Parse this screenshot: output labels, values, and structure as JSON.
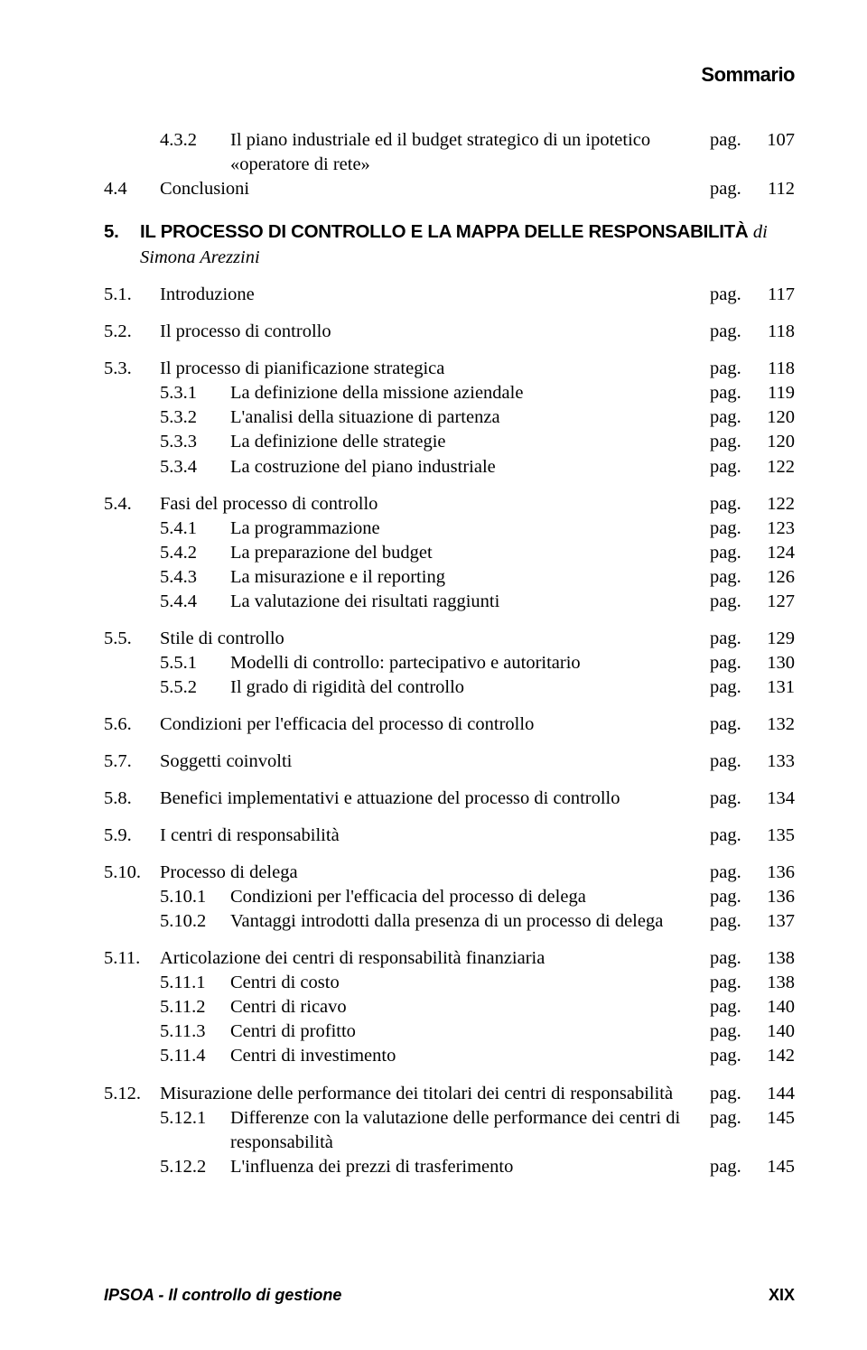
{
  "header": "Sommario",
  "pag_label": "pag.",
  "chapter": {
    "num": "5.",
    "title": "IL PROCESSO DI CONTROLLO E LA MAPPA DELLE RESPONSABILITÀ",
    "author_prefix": "di ",
    "author": "Simona Arezzini"
  },
  "pre": [
    {
      "num": "4.3.2",
      "level": 2,
      "title": "Il piano industriale ed il budget strategico di un ipotetico «operatore di rete»",
      "page": "107"
    },
    {
      "num": "4.4",
      "level": 1,
      "title": "Conclusioni",
      "page": "112"
    }
  ],
  "sections": [
    [
      {
        "num": "5.1.",
        "level": 1,
        "title": "Introduzione",
        "page": "117"
      }
    ],
    [
      {
        "num": "5.2.",
        "level": 1,
        "title": "Il processo di controllo",
        "page": "118"
      }
    ],
    [
      {
        "num": "5.3.",
        "level": 1,
        "title": "Il processo di pianificazione strategica",
        "page": "118"
      },
      {
        "num": "5.3.1",
        "level": 2,
        "title": "La definizione della missione aziendale",
        "page": "119"
      },
      {
        "num": "5.3.2",
        "level": 2,
        "title": "L'analisi della situazione di partenza",
        "page": "120"
      },
      {
        "num": "5.3.3",
        "level": 2,
        "title": "La definizione delle strategie",
        "page": "120"
      },
      {
        "num": "5.3.4",
        "level": 2,
        "title": "La costruzione del piano industriale",
        "page": "122"
      }
    ],
    [
      {
        "num": "5.4.",
        "level": 1,
        "title": "Fasi del processo di controllo",
        "page": "122"
      },
      {
        "num": "5.4.1",
        "level": 2,
        "title": "La programmazione",
        "page": "123"
      },
      {
        "num": "5.4.2",
        "level": 2,
        "title": "La preparazione del budget",
        "page": "124"
      },
      {
        "num": "5.4.3",
        "level": 2,
        "title": "La misurazione e il reporting",
        "page": "126"
      },
      {
        "num": "5.4.4",
        "level": 2,
        "title": "La valutazione dei risultati raggiunti",
        "page": "127"
      }
    ],
    [
      {
        "num": "5.5.",
        "level": 1,
        "title": "Stile di controllo",
        "page": "129"
      },
      {
        "num": "5.5.1",
        "level": 2,
        "title": "Modelli di controllo: partecipativo e autoritario",
        "page": "130"
      },
      {
        "num": "5.5.2",
        "level": 2,
        "title": "Il grado di rigidità del controllo",
        "page": "131"
      }
    ],
    [
      {
        "num": "5.6.",
        "level": 1,
        "title": "Condizioni per l'efficacia del processo di controllo",
        "page": "132"
      }
    ],
    [
      {
        "num": "5.7.",
        "level": 1,
        "title": "Soggetti coinvolti",
        "page": "133"
      }
    ],
    [
      {
        "num": "5.8.",
        "level": 1,
        "title": "Benefici implementativi e attuazione del processo di controllo",
        "page": "134"
      }
    ],
    [
      {
        "num": "5.9.",
        "level": 1,
        "title": "I centri di responsabilità",
        "page": "135"
      }
    ],
    [
      {
        "num": "5.10.",
        "level": 1,
        "title": "Processo di delega",
        "page": "136"
      },
      {
        "num": "5.10.1",
        "level": 2,
        "title": "Condizioni per l'efficacia del processo di delega",
        "page": "136"
      },
      {
        "num": "5.10.2",
        "level": 2,
        "title": "Vantaggi introdotti dalla presenza di un processo di delega",
        "page": "137"
      }
    ],
    [
      {
        "num": "5.11.",
        "level": 1,
        "title": "Articolazione dei centri di responsabilità finanziaria",
        "page": "138"
      },
      {
        "num": "5.11.1",
        "level": 2,
        "title": "Centri di costo",
        "page": "138"
      },
      {
        "num": "5.11.2",
        "level": 2,
        "title": "Centri di ricavo",
        "page": "140"
      },
      {
        "num": "5.11.3",
        "level": 2,
        "title": "Centri di profitto",
        "page": "140"
      },
      {
        "num": "5.11.4",
        "level": 2,
        "title": "Centri di investimento",
        "page": "142"
      }
    ],
    [
      {
        "num": "5.12.",
        "level": 1,
        "title": "Misurazione delle performance dei titolari dei centri di responsabilità",
        "page": "144"
      },
      {
        "num": "5.12.1",
        "level": 2,
        "title": "Differenze con la valutazione delle performance dei centri di responsabilità",
        "page": "145"
      },
      {
        "num": "5.12.2",
        "level": 2,
        "title": "L'influenza dei prezzi di trasferimento",
        "page": "145"
      }
    ]
  ],
  "footer": {
    "left": "IPSOA - Il controllo di gestione",
    "right": "XIX"
  }
}
